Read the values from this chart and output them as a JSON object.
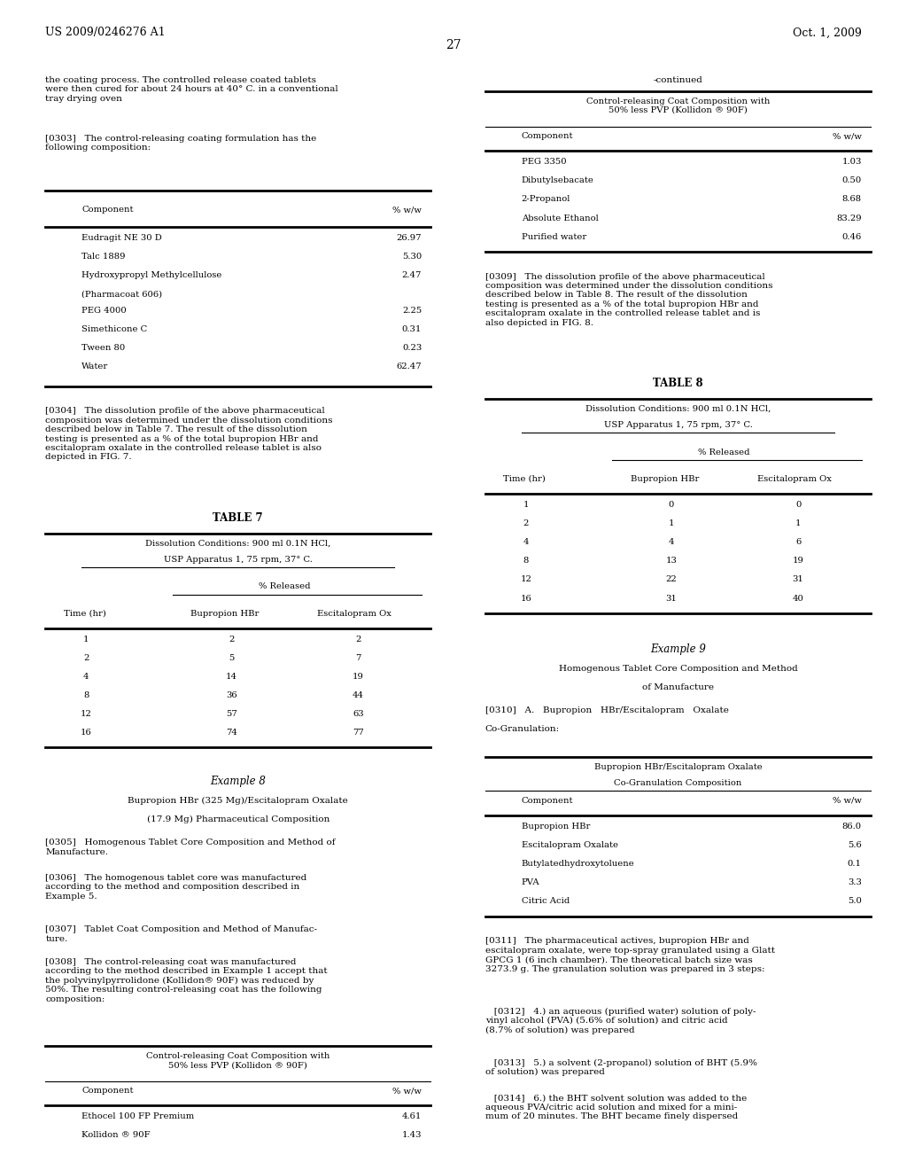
{
  "bg_color": "#ffffff",
  "header_left": "US 2009/0246276 A1",
  "header_right": "Oct. 1, 2009",
  "page_number": "27",
  "left_text_block1": "the coating process. The controlled release coated tablets\nwere then cured for about 24 hours at 40° C. in a conventional\ntray drying oven",
  "left_para_0303": "[0303]   The control-releasing coating formulation has the\nfollowing composition:",
  "table_left_title_col": "Component",
  "table_left_title_val": "% w/w",
  "table_left_rows": [
    [
      "Eudragit NE 30 D",
      "26.97"
    ],
    [
      "Talc 1889",
      "5.30"
    ],
    [
      "Hydroxypropyl Methylcellulose\n(Pharmacoat 606)",
      "2.47"
    ],
    [
      "PEG 4000",
      "2.25"
    ],
    [
      "Simethicone C",
      "0.31"
    ],
    [
      "Tween 80",
      "0.23"
    ],
    [
      "Water",
      "62.47"
    ]
  ],
  "left_para_0304": "[0304]   The dissolution profile of the above pharmaceutical\ncomposition was determined under the dissolution conditions\ndescribed below in Table 7. The result of the dissolution\ntesting is presented as a % of the total bupropion HBr and\nescitalopram oxalate in the controlled release tablet is also\ndepicted in FIG. 7.",
  "table7_title": "TABLE 7",
  "table7_cond1": "Dissolution Conditions: 900 ml 0.1N HCl,",
  "table7_cond2": "USP Apparatus 1, 75 rpm, 37° C.",
  "table7_pct": "% Released",
  "table7_col1": "Time (hr)",
  "table7_col2": "Bupropion HBr",
  "table7_col3": "Escitalopram Ox",
  "table7_rows": [
    [
      "1",
      "2",
      "2"
    ],
    [
      "2",
      "5",
      "7"
    ],
    [
      "4",
      "14",
      "19"
    ],
    [
      "8",
      "36",
      "44"
    ],
    [
      "12",
      "57",
      "63"
    ],
    [
      "16",
      "74",
      "77"
    ]
  ],
  "example8_title": "Example 8",
  "example8_subtitle1": "Bupropion HBr (325 Mg)/Escitalopram Oxalate",
  "example8_subtitle2": "(17.9 Mg) Pharmaceutical Composition",
  "left_para_0305": "[0305]   Homogenous Tablet Core Composition and Method of\nManufacture.",
  "left_para_0306": "[0306]   The homogenous tablet core was manufactured\naccording to the method and composition described in\nExample 5.",
  "left_para_0307": "[0307]   Tablet Coat Composition and Method of Manufac-\nture.",
  "left_para_0308": "[0308]   The control-releasing coat was manufactured\naccording to the method described in Example 1 accept that\nthe polyvinylpyrrolidone (Kollidon® 90F) was reduced by\n50%. The resulting control-releasing coat has the following\ncomposition:",
  "table_bot_left_title": "Control-releasing Coat Composition with\n50% less PVP (Kollidon ® 90F)",
  "table_bot_left_col1": "Component",
  "table_bot_left_col2": "% w/w",
  "table_bot_left_rows": [
    [
      "Ethocel 100 FP Premium",
      "4.61"
    ],
    [
      "Kollidon ® 90F",
      "1.43"
    ]
  ],
  "right_continued": "-continued",
  "right_table_top_title": "Control-releasing Coat Composition with\n50% less PVP (Kollidon ® 90F)",
  "right_table_col1": "Component",
  "right_table_col2": "% w/w",
  "right_table_rows": [
    [
      "PEG 3350",
      "1.03"
    ],
    [
      "Dibutylsebacate",
      "0.50"
    ],
    [
      "2-Propanol",
      "8.68"
    ],
    [
      "Absolute Ethanol",
      "83.29"
    ],
    [
      "Purified water",
      "0.46"
    ]
  ],
  "right_para_0309": "[0309]   The dissolution profile of the above pharmaceutical\ncomposition was determined under the dissolution conditions\ndescribed below in Table 8. The result of the dissolution\ntesting is presented as a % of the total bupropion HBr and\nescitalopram oxalate in the controlled release tablet and is\nalso depicted in FIG. 8.",
  "table8_title": "TABLE 8",
  "table8_cond1": "Dissolution Conditions: 900 ml 0.1N HCl,",
  "table8_cond2": "USP Apparatus 1, 75 rpm, 37° C.",
  "table8_pct": "% Released",
  "table8_col1": "Time (hr)",
  "table8_col2": "Bupropion HBr",
  "table8_col3": "Escitalopram Ox",
  "table8_rows": [
    [
      "1",
      "0",
      "0"
    ],
    [
      "2",
      "1",
      "1"
    ],
    [
      "4",
      "4",
      "6"
    ],
    [
      "8",
      "13",
      "19"
    ],
    [
      "12",
      "22",
      "31"
    ],
    [
      "16",
      "31",
      "40"
    ]
  ],
  "example9_title": "Example 9",
  "example9_subtitle1": "Homogenous Tablet Core Composition and Method",
  "example9_subtitle2": "of Manufacture",
  "right_para_0310_line1": "[0310]   A.   Bupropion   HBr/Escitalopram   Oxalate",
  "right_para_0310_line2": "Co-Granulation:",
  "table_cogran_title1": "Bupropion HBr/Escitalopram Oxalate",
  "table_cogran_title2": "Co-Granulation Composition",
  "table_cogran_col1": "Component",
  "table_cogran_col2": "% w/w",
  "table_cogran_rows": [
    [
      "Bupropion HBr",
      "86.0"
    ],
    [
      "Escitalopram Oxalate",
      "5.6"
    ],
    [
      "Butylatedhydroxytoluene",
      "0.1"
    ],
    [
      "PVA",
      "3.3"
    ],
    [
      "Citric Acid",
      "5.0"
    ]
  ],
  "right_para_0311": "[0311]   The pharmaceutical actives, bupropion HBr and\nescitalopram oxalate, were top-spray granulated using a Glatt\nGPCG 1 (6 inch chamber). The theoretical batch size was\n3273.9 g. The granulation solution was prepared in 3 steps:",
  "right_para_0312": "   [0312]   4.) an aqueous (purified water) solution of poly-\nvinyl alcohol (PVA) (5.6% of solution) and citric acid\n(8.7% of solution) was prepared",
  "right_para_0313": "   [0313]   5.) a solvent (2-propanol) solution of BHT (5.9%\nof solution) was prepared",
  "right_para_0314": "   [0314]   6.) the BHT solvent solution was added to the\naqueous PVA/citric acid solution and mixed for a mini-\nmum of 20 minutes. The BHT became finely dispersed"
}
